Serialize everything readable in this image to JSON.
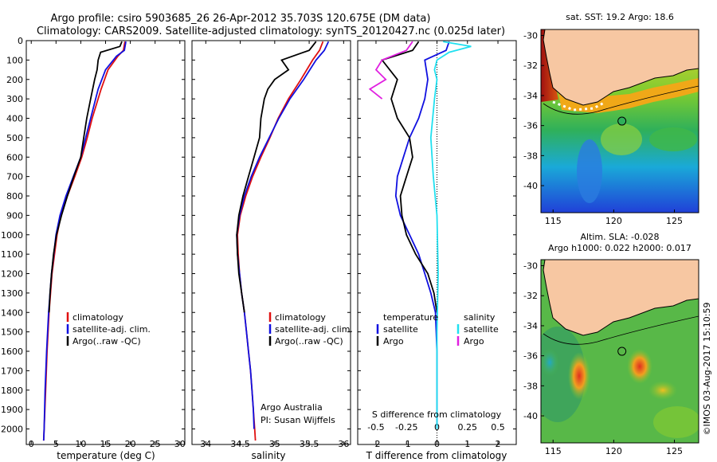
{
  "header": {
    "line1": "Argo profile: csiro 5903685_26 26-Apr-2012 35.703S 120.675E (DM data)",
    "line2": "Climatology: CARS2009. Satellite-adjusted climatology: synTS_20120427.nc (0.025d later)"
  },
  "credit": {
    "line1": "Argo Australia",
    "line2": "PI: Susan Wijffels",
    "stamp": "©IMOS 03-Aug-2017 15:10:59"
  },
  "colors": {
    "climatology": "#e01010",
    "satellite": "#1010e0",
    "argo": "#000000",
    "sal_satellite": "#20e0f0",
    "sal_argo": "#e020e0",
    "land": "#f7c7a2"
  },
  "chart_data": [
    {
      "type": "line",
      "id": "temperature",
      "xlabel": "temperature (deg C)",
      "ylabel": "",
      "xlim": [
        -1,
        31
      ],
      "ylim": [
        2080,
        0
      ],
      "xticks": [
        0,
        5,
        10,
        15,
        20,
        25,
        30
      ],
      "yticks": [
        0,
        100,
        200,
        300,
        400,
        500,
        600,
        700,
        800,
        900,
        1000,
        1100,
        1200,
        1300,
        1400,
        1500,
        1600,
        1700,
        1800,
        1900,
        2000
      ],
      "legend": [
        "climatology",
        "satellite-adj. clim.",
        "Argo(..raw -QC)"
      ],
      "series": [
        {
          "name": "climatology",
          "color": "#e01010",
          "depth": [
            5,
            50,
            80,
            150,
            250,
            400,
            500,
            600,
            700,
            800,
            900,
            1000,
            1200,
            1400,
            1600,
            1800,
            2000,
            2060
          ],
          "values": [
            18.9,
            18.6,
            17.5,
            15.5,
            14.1,
            12.3,
            11.3,
            10.2,
            8.8,
            7.3,
            6.0,
            5.2,
            4.2,
            3.6,
            3.2,
            2.9,
            2.6,
            2.5
          ]
        },
        {
          "name": "satellite-adj. clim.",
          "color": "#1010e0",
          "depth": [
            5,
            50,
            80,
            150,
            250,
            400,
            500,
            600,
            700,
            800,
            900,
            1000,
            1200,
            1400,
            1600,
            1800,
            2000,
            2060
          ],
          "values": [
            19.1,
            18.8,
            17.2,
            15.0,
            13.5,
            12.0,
            11.0,
            10.0,
            8.5,
            7.0,
            5.8,
            5.0,
            4.1,
            3.5,
            3.1,
            2.8,
            2.6,
            2.5
          ]
        },
        {
          "name": "Argo(..raw -QC)",
          "color": "#000000",
          "depth": [
            5,
            30,
            60,
            100,
            150,
            200,
            300,
            400,
            500,
            600,
            700,
            800,
            900,
            1000,
            1100,
            1200,
            1300,
            1400
          ],
          "values": [
            18.3,
            17.9,
            14.0,
            13.5,
            13.3,
            12.8,
            12.0,
            11.2,
            10.6,
            10.0,
            8.6,
            7.3,
            6.1,
            5.1,
            4.5,
            4.1,
            3.8,
            3.6
          ]
        }
      ]
    },
    {
      "type": "line",
      "id": "salinity",
      "xlabel": "salinity",
      "xlim": [
        33.8,
        36.1
      ],
      "ylim": [
        2080,
        0
      ],
      "xticks": [
        34,
        34.5,
        35,
        35.5,
        36
      ],
      "legend": [
        "climatology",
        "satellite-adj. clim.",
        "Argo(..raw -QC)"
      ],
      "series": [
        {
          "name": "climatology",
          "color": "#e01010",
          "depth": [
            5,
            50,
            100,
            200,
            300,
            400,
            500,
            600,
            700,
            800,
            900,
            1000,
            1100,
            1200,
            1300,
            1400,
            1500,
            1600,
            1700,
            1800,
            1900,
            2000,
            2060
          ],
          "values": [
            35.7,
            35.65,
            35.55,
            35.38,
            35.2,
            35.05,
            34.93,
            34.8,
            34.68,
            34.58,
            34.5,
            34.46,
            34.47,
            34.49,
            34.52,
            34.56,
            34.59,
            34.62,
            34.65,
            34.67,
            34.69,
            34.71,
            34.72
          ]
        },
        {
          "name": "satellite-adj. clim.",
          "color": "#1010e0",
          "depth": [
            5,
            50,
            100,
            200,
            300,
            400,
            500,
            600,
            700,
            800,
            900,
            1000,
            1100,
            1200,
            1300,
            1400,
            1500,
            1600,
            1700,
            1800,
            1900,
            2000
          ],
          "values": [
            35.78,
            35.72,
            35.6,
            35.42,
            35.22,
            35.06,
            34.92,
            34.78,
            34.66,
            34.56,
            34.49,
            34.45,
            34.46,
            34.49,
            34.52,
            34.56,
            34.59,
            34.62,
            34.65,
            34.67,
            34.69,
            34.7
          ]
        },
        {
          "name": "Argo(..raw -QC)",
          "color": "#000000",
          "depth": [
            5,
            50,
            100,
            150,
            200,
            250,
            300,
            400,
            500,
            600,
            700,
            800,
            900,
            1000,
            1100,
            1200,
            1300,
            1400
          ],
          "values": [
            35.6,
            35.5,
            35.1,
            35.2,
            35.0,
            34.9,
            34.85,
            34.8,
            34.78,
            34.7,
            34.62,
            34.54,
            34.48,
            34.45,
            34.46,
            34.48,
            34.52,
            34.56
          ]
        }
      ]
    },
    {
      "type": "line",
      "id": "difference",
      "xlabel": "T difference from climatology",
      "xlabel_top": "S difference from climatology",
      "xlim": [
        -2.6,
        2.6
      ],
      "ylim": [
        2080,
        0
      ],
      "xticks_T": [
        -2,
        -1,
        0,
        1,
        2
      ],
      "xticks_S": [
        -0.5,
        -0.25,
        0,
        0.25,
        0.5
      ],
      "xticks_S_labels": [
        "-0.5",
        "-0.25",
        "0",
        "0.25",
        "0.5"
      ],
      "legend_T": {
        "title": "temperature",
        "items": [
          "satellite",
          "Argo"
        ]
      },
      "legend_S": {
        "title": "salinity",
        "items": [
          "satellite",
          "Argo"
        ]
      },
      "series": [
        {
          "name": "T satellite",
          "color": "#1010e0",
          "depth": [
            5,
            50,
            100,
            200,
            300,
            400,
            500,
            600,
            700,
            800,
            900,
            1000,
            1100,
            1200,
            1300,
            1400,
            1600,
            2000
          ],
          "values": [
            0.4,
            0.3,
            -0.4,
            -0.3,
            -0.4,
            -0.6,
            -0.9,
            -1.1,
            -1.3,
            -1.35,
            -1.2,
            -0.9,
            -0.6,
            -0.4,
            -0.2,
            -0.05,
            0,
            0
          ]
        },
        {
          "name": "T Argo",
          "color": "#000000",
          "depth": [
            5,
            50,
            100,
            200,
            300,
            400,
            500,
            600,
            700,
            800,
            900,
            1000,
            1100,
            1200,
            1300,
            1400
          ],
          "values": [
            -0.6,
            -0.8,
            -1.8,
            -1.3,
            -1.5,
            -1.3,
            -0.9,
            -0.8,
            -1.0,
            -1.2,
            -1.15,
            -1.0,
            -0.7,
            -0.3,
            -0.1,
            0
          ]
        },
        {
          "name": "S satellite",
          "color": "#20e0f0",
          "depth": [
            5,
            30,
            60,
            100,
            150,
            200,
            300,
            500,
            700,
            900,
            1200,
            1500,
            2000
          ],
          "values": [
            0.05,
            0.28,
            0.1,
            0.0,
            -0.02,
            0.0,
            -0.02,
            -0.05,
            -0.03,
            0.0,
            0.01,
            0.0,
            0.0
          ]
        },
        {
          "name": "S Argo",
          "color": "#e020e0",
          "depth": [
            5,
            50,
            100,
            150,
            200,
            250,
            300
          ],
          "values": [
            -0.2,
            -0.25,
            -0.45,
            -0.5,
            -0.42,
            -0.55,
            -0.45
          ]
        }
      ]
    }
  ],
  "maps": [
    {
      "id": "sst-map",
      "title": "sat. SST: 19.2 Argo: 18.6",
      "xticks": [
        "115",
        "120",
        "125"
      ],
      "yticks": [
        "-30",
        "-32",
        "-34",
        "-36",
        "-38",
        "-40"
      ],
      "xlim": [
        114,
        127
      ],
      "ylim": [
        -41.8,
        -29.6
      ],
      "float_lon": 120.675,
      "float_lat": -35.703
    },
    {
      "id": "sla-map",
      "title": "Altim. SLA: -0.028",
      "subtitle": "Argo h1000: 0.022 h2000: 0.017",
      "xticks": [
        "115",
        "120",
        "125"
      ],
      "yticks": [
        "-30",
        "-32",
        "-34",
        "-36",
        "-38",
        "-40"
      ],
      "xlim": [
        114,
        127
      ],
      "ylim": [
        -41.8,
        -29.6
      ],
      "float_lon": 120.675,
      "float_lat": -35.703
    }
  ]
}
